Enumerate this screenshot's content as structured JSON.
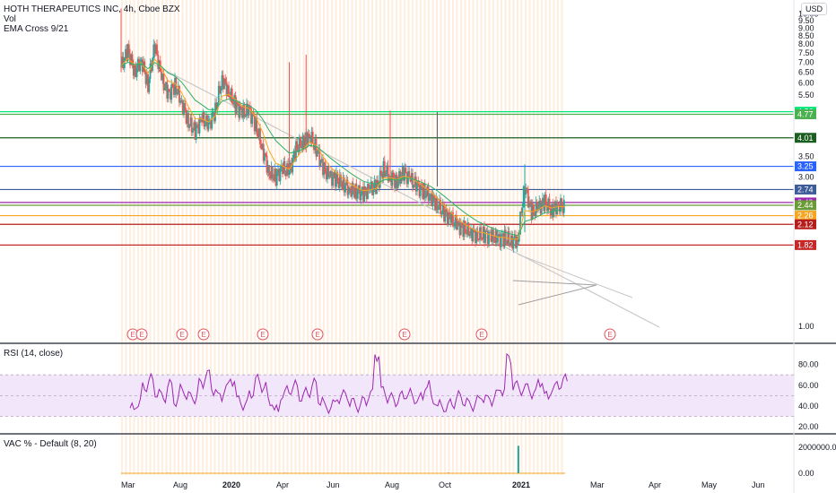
{
  "legend": {
    "symbol": "HOTH THERAPEUTICS INC, 4h, Cboe BZX",
    "vol": "Vol",
    "ema": "EMA Cross 9/21"
  },
  "currency": "USD",
  "rsi_label": "RSI (14, close)",
  "vac_label": "VAC % - Default (8, 20)",
  "colors": {
    "candle_up": "#26a69a",
    "candle_down": "#ef5350",
    "ema_fast": "#f5a623",
    "ema_slow": "#2fb06b",
    "rsi_line": "#9c27b0",
    "rsi_band": "#f2e6fa",
    "trendline": "#c8c8c8",
    "session_shade": "#fdeede"
  },
  "chart_data": [
    {
      "type": "candlestick",
      "title": "HOTH THERAPEUTICS INC, 4h, Cboe BZX",
      "x_ticks": [
        "Mar",
        "Aug",
        "2020",
        "Apr",
        "Jun",
        "Aug",
        "Oct",
        "2021",
        "Mar",
        "Apr",
        "May",
        "Jun"
      ],
      "y_ticks": [
        "10.00",
        "9.50",
        "9.00",
        "8.50",
        "8.00",
        "7.50",
        "7.00",
        "6.50",
        "6.00",
        "5.50",
        "3.50",
        "3.00",
        "1.00"
      ],
      "y_scale": "log",
      "ylim": [
        0.9,
        10.5
      ],
      "price_levels": [
        {
          "value": 4.86,
          "label": "4.86",
          "color": "#00e676"
        },
        {
          "value": 4.77,
          "label": "4.77",
          "color": "#4caf50"
        },
        {
          "value": 4.01,
          "label": "4.01",
          "color": "#1b5e20"
        },
        {
          "value": 3.25,
          "label": "3.25",
          "color": "#2962ff"
        },
        {
          "value": 2.74,
          "label": "2.74",
          "color": "#3d5a99"
        },
        {
          "value": 2.49,
          "label": "2.49",
          "color": "#9c27b0"
        },
        {
          "value": 2.44,
          "label": "2.44",
          "color": "#6b9b37"
        },
        {
          "value": 2.26,
          "label": "2.26",
          "color": "#f5a623"
        },
        {
          "value": 2.12,
          "label": "2.12",
          "color": "#b71c1c"
        },
        {
          "value": 1.82,
          "label": "1.82",
          "color": "#c62828"
        }
      ],
      "earnings_markers": [
        "E",
        "E",
        "E",
        "E",
        "E",
        "E",
        "E",
        "E",
        "E"
      ],
      "series": [
        {
          "t": 0.0,
          "v": 6.8
        },
        {
          "t": 0.01,
          "v": 7.6
        },
        {
          "t": 0.02,
          "v": 6.5
        },
        {
          "t": 0.03,
          "v": 7.1
        },
        {
          "t": 0.04,
          "v": 5.9
        },
        {
          "t": 0.05,
          "v": 7.9
        },
        {
          "t": 0.06,
          "v": 6.2
        },
        {
          "t": 0.07,
          "v": 5.5
        },
        {
          "t": 0.08,
          "v": 5.9
        },
        {
          "t": 0.09,
          "v": 5.2
        },
        {
          "t": 0.1,
          "v": 4.5
        },
        {
          "t": 0.11,
          "v": 4.2
        },
        {
          "t": 0.12,
          "v": 4.6
        },
        {
          "t": 0.13,
          "v": 4.4
        },
        {
          "t": 0.14,
          "v": 4.9
        },
        {
          "t": 0.15,
          "v": 6.2
        },
        {
          "t": 0.16,
          "v": 5.6
        },
        {
          "t": 0.17,
          "v": 5.1
        },
        {
          "t": 0.18,
          "v": 4.8
        },
        {
          "t": 0.19,
          "v": 4.9
        },
        {
          "t": 0.2,
          "v": 4.4
        },
        {
          "t": 0.21,
          "v": 3.7
        },
        {
          "t": 0.22,
          "v": 3.1
        },
        {
          "t": 0.23,
          "v": 3.0
        },
        {
          "t": 0.24,
          "v": 3.2
        },
        {
          "t": 0.25,
          "v": 3.1
        },
        {
          "t": 0.26,
          "v": 3.7
        },
        {
          "t": 0.27,
          "v": 3.9
        },
        {
          "t": 0.28,
          "v": 4.1
        },
        {
          "t": 0.29,
          "v": 3.7
        },
        {
          "t": 0.3,
          "v": 3.2
        },
        {
          "t": 0.31,
          "v": 3.0
        },
        {
          "t": 0.32,
          "v": 2.95
        },
        {
          "t": 0.33,
          "v": 2.85
        },
        {
          "t": 0.34,
          "v": 2.75
        },
        {
          "t": 0.35,
          "v": 2.7
        },
        {
          "t": 0.36,
          "v": 2.65
        },
        {
          "t": 0.37,
          "v": 2.75
        },
        {
          "t": 0.38,
          "v": 2.8
        },
        {
          "t": 0.39,
          "v": 3.2
        },
        {
          "t": 0.4,
          "v": 3.0
        },
        {
          "t": 0.41,
          "v": 2.9
        },
        {
          "t": 0.42,
          "v": 3.1
        },
        {
          "t": 0.43,
          "v": 2.95
        },
        {
          "t": 0.44,
          "v": 2.8
        },
        {
          "t": 0.45,
          "v": 2.7
        },
        {
          "t": 0.46,
          "v": 2.6
        },
        {
          "t": 0.47,
          "v": 2.45
        },
        {
          "t": 0.48,
          "v": 2.3
        },
        {
          "t": 0.49,
          "v": 2.2
        },
        {
          "t": 0.5,
          "v": 2.1
        },
        {
          "t": 0.51,
          "v": 2.05
        },
        {
          "t": 0.52,
          "v": 2.0
        },
        {
          "t": 0.53,
          "v": 1.95
        },
        {
          "t": 0.54,
          "v": 1.97
        },
        {
          "t": 0.55,
          "v": 1.93
        },
        {
          "t": 0.56,
          "v": 1.9
        },
        {
          "t": 0.57,
          "v": 1.92
        },
        {
          "t": 0.58,
          "v": 1.88
        },
        {
          "t": 0.59,
          "v": 1.9
        },
        {
          "t": 0.6,
          "v": 2.8
        },
        {
          "t": 0.61,
          "v": 2.3
        },
        {
          "t": 0.62,
          "v": 2.4
        },
        {
          "t": 0.63,
          "v": 2.5
        },
        {
          "t": 0.64,
          "v": 2.35
        },
        {
          "t": 0.65,
          "v": 2.45
        },
        {
          "t": 0.66,
          "v": 2.4
        }
      ]
    },
    {
      "type": "line",
      "title": "RSI (14, close)",
      "y_ticks": [
        "80.00",
        "60.00",
        "40.00",
        "20.00"
      ],
      "ylim": [
        15,
        90
      ],
      "band": [
        30,
        70
      ],
      "values": [
        38,
        42,
        58,
        66,
        52,
        48,
        61,
        44,
        56,
        50,
        47,
        62,
        71,
        55,
        49,
        58,
        64,
        46,
        41,
        52,
        66,
        58,
        44,
        36,
        50,
        55,
        60,
        48,
        53,
        62,
        45,
        38,
        42,
        47,
        51,
        44,
        39,
        45,
        52,
        88,
        55,
        48,
        44,
        50,
        52,
        46,
        48,
        60,
        45,
        41,
        38,
        42,
        50,
        44,
        40,
        46,
        48,
        45,
        52,
        55,
        86,
        60,
        55,
        58,
        52,
        63,
        50,
        56,
        60,
        66
      ]
    },
    {
      "type": "bar",
      "title": "VAC % - Default (8, 20)",
      "y_ticks": [
        "2000000.00",
        "0.00"
      ],
      "ylim": [
        0,
        2600000
      ],
      "values": [
        0,
        0,
        20000,
        0,
        10000,
        0,
        0,
        30000,
        0,
        0,
        0,
        15000,
        0,
        0,
        40000,
        0,
        0,
        2100000,
        0,
        0
      ]
    }
  ]
}
